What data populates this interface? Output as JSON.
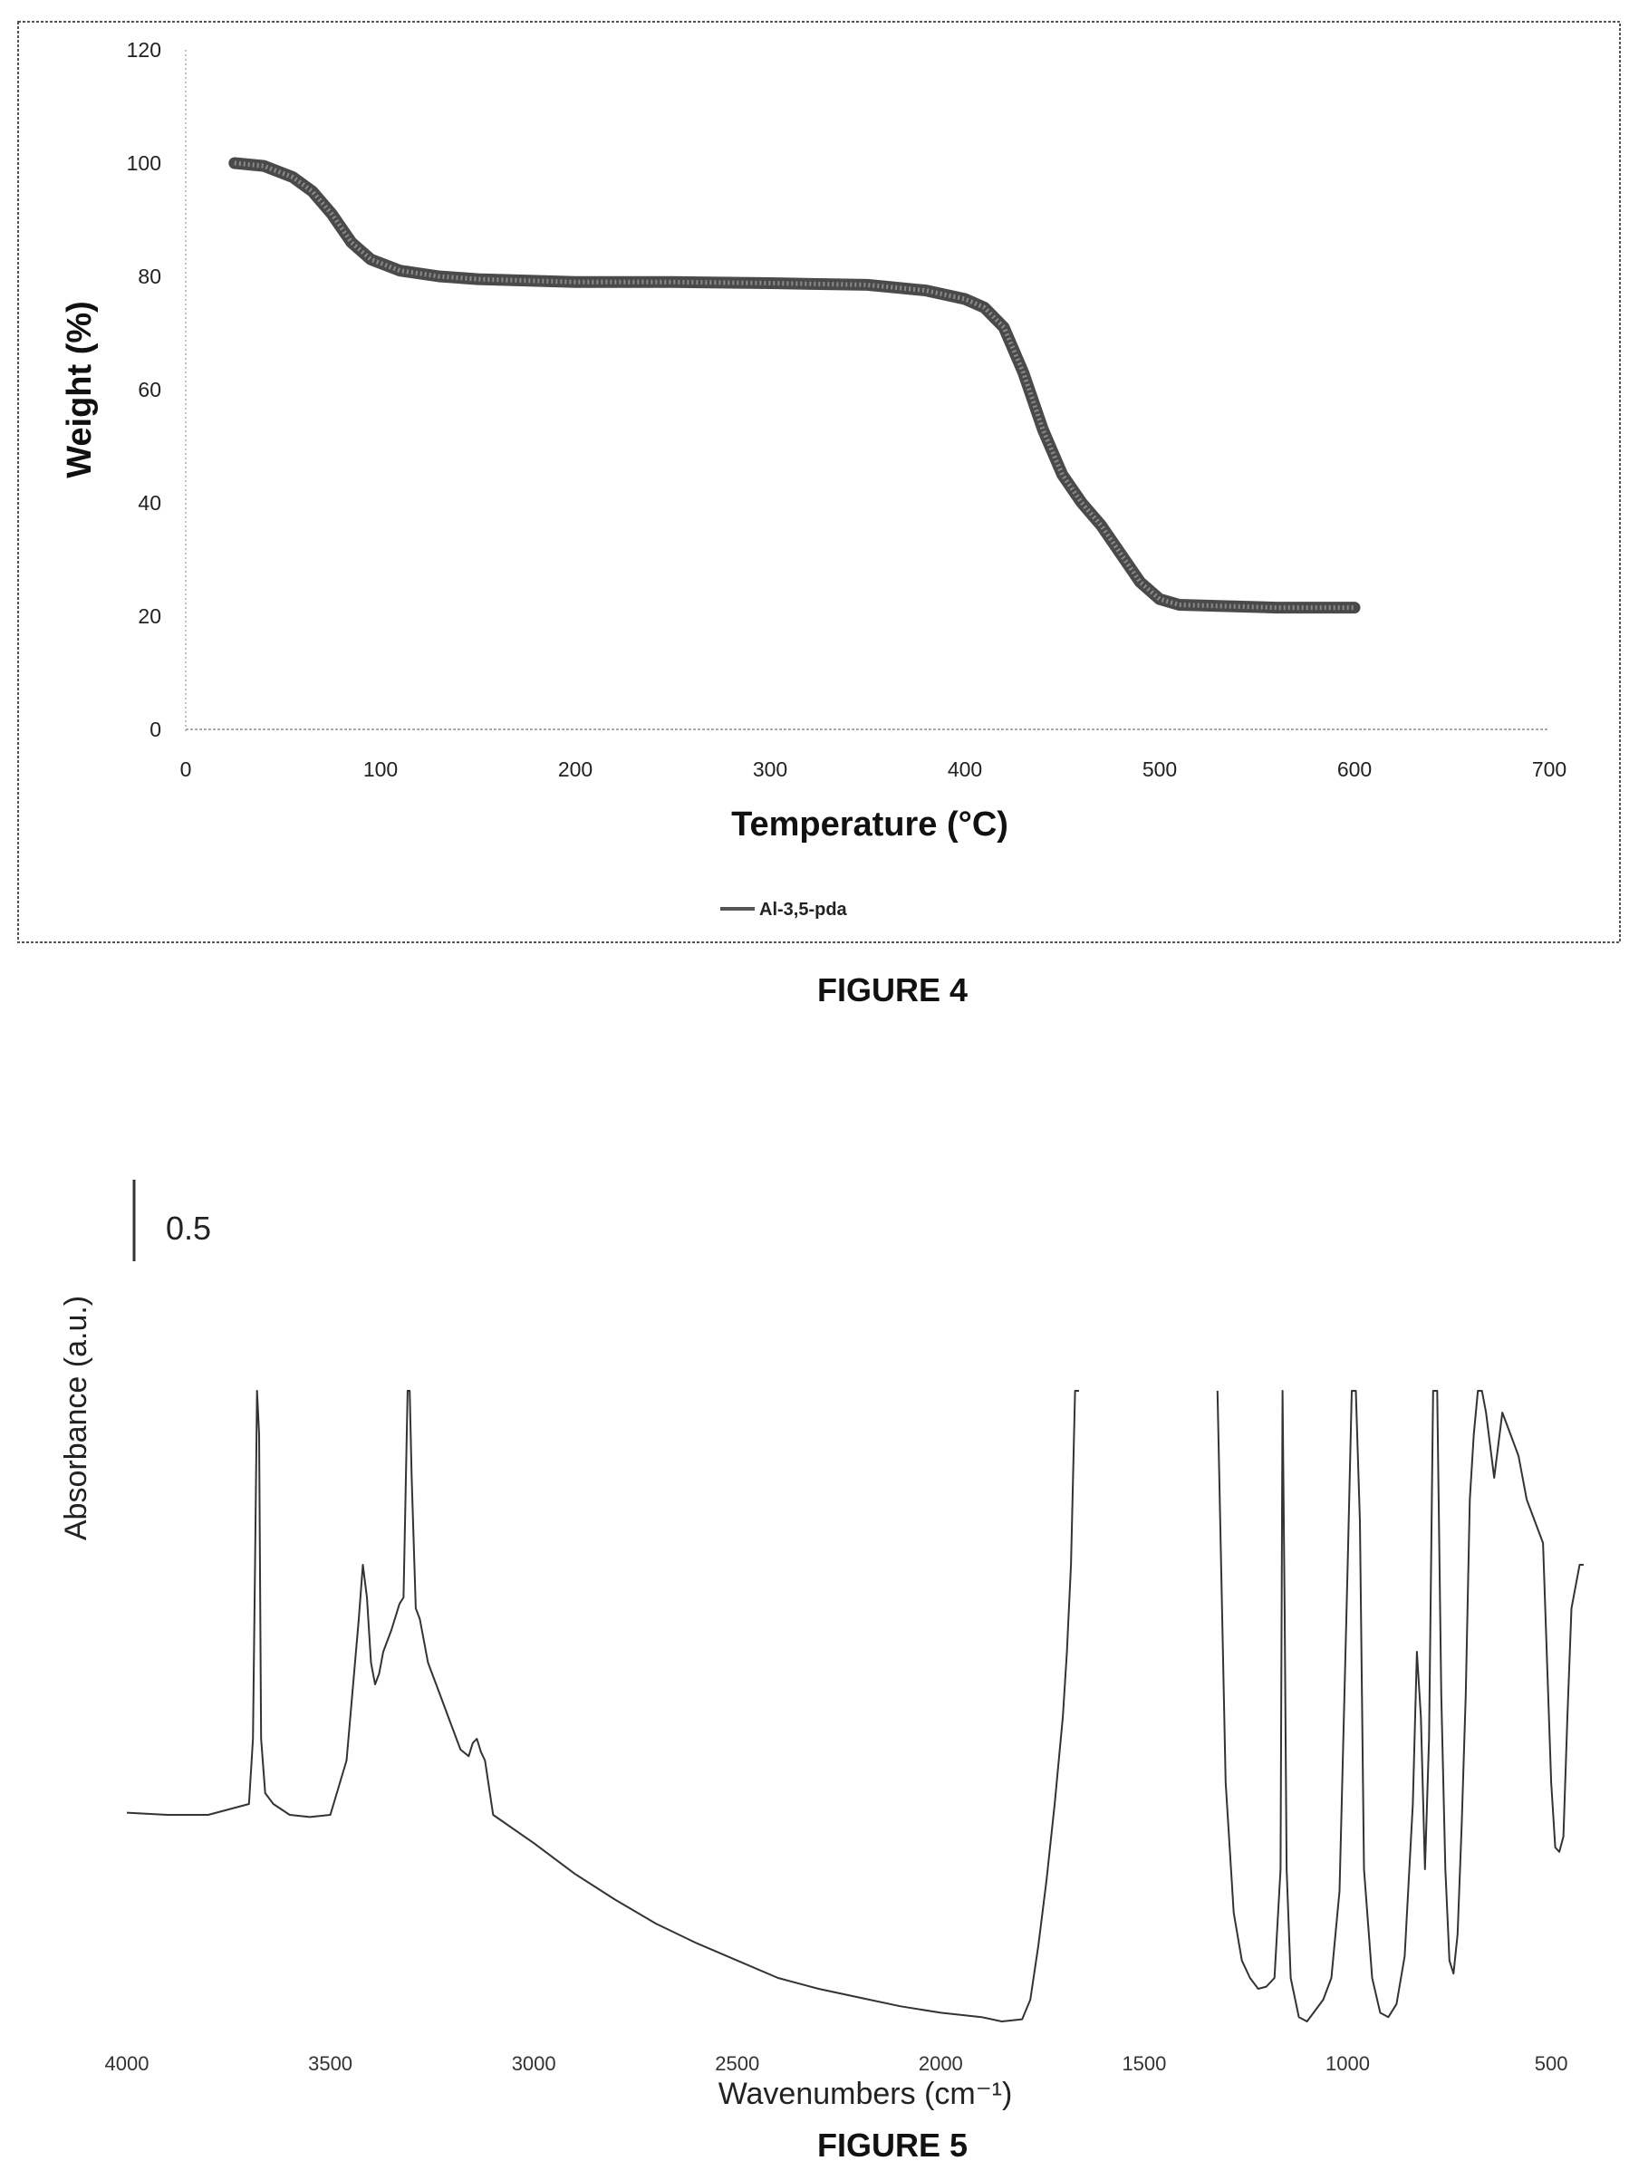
{
  "figure4": {
    "caption": "FIGURE 4",
    "legend_label": "Al-3,5-pda"
  },
  "figure5": {
    "caption": "FIGURE 5",
    "scale_bar_label": "0.5"
  },
  "chart_data": [
    {
      "type": "line",
      "title": "",
      "xlabel": "Temperature (°C)",
      "ylabel": "Weight (%)",
      "xlim": [
        0,
        700
      ],
      "ylim": [
        0,
        120
      ],
      "xticks": [
        "0",
        "100",
        "200",
        "300",
        "400",
        "500",
        "600",
        "700"
      ],
      "yticks": [
        "0",
        "20",
        "40",
        "60",
        "80",
        "100",
        "120"
      ],
      "grid": false,
      "legend": "bottom-center",
      "series": [
        {
          "name": "Al-3,5-pda",
          "x": [
            25,
            40,
            55,
            65,
            75,
            85,
            95,
            110,
            130,
            150,
            200,
            250,
            300,
            350,
            380,
            400,
            410,
            420,
            430,
            440,
            450,
            460,
            470,
            480,
            490,
            500,
            510,
            530,
            560,
            600
          ],
          "y": [
            100,
            99.5,
            97.5,
            95,
            91,
            86,
            83,
            81,
            80,
            79.5,
            79,
            79,
            78.8,
            78.5,
            77.5,
            76,
            74.5,
            71,
            63,
            53,
            45,
            40,
            36,
            31,
            26,
            23,
            22,
            21.8,
            21.5,
            21.5
          ]
        }
      ]
    },
    {
      "type": "line",
      "title": "",
      "xlabel": "Wavenumbers (cm⁻¹)",
      "ylabel": "Absorbance (a.u.)",
      "xlim": [
        4000,
        400
      ],
      "x_reversed": true,
      "xticks": [
        "4000",
        "3500",
        "3000",
        "2500",
        "2000",
        "1500",
        "1000",
        "500"
      ],
      "y_ticks_shown": false,
      "grid": false,
      "series": [
        {
          "x": [
            4000,
            3900,
            3800,
            3700,
            3690,
            3685,
            3680,
            3675,
            3670,
            3660,
            3640,
            3600,
            3550,
            3500,
            3460,
            3430,
            3420,
            3410,
            3400,
            3390,
            3380,
            3370,
            3350,
            3330,
            3320,
            3310,
            3305,
            3300,
            3290,
            3280,
            3260,
            3230,
            3200,
            3180,
            3160,
            3150,
            3140,
            3130,
            3120,
            3100,
            3000,
            2900,
            2800,
            2700,
            2600,
            2500,
            2400,
            2300,
            2200,
            2100,
            2000,
            1900,
            1850,
            1800,
            1780,
            1760,
            1740,
            1720,
            1700,
            1690,
            1680,
            1670,
            1660
          ],
          "y": [
            0.06,
            0.05,
            0.05,
            0.1,
            0.4,
            1.2,
            2.0,
            1.8,
            0.4,
            0.15,
            0.1,
            0.05,
            0.04,
            0.05,
            0.3,
            0.95,
            1.2,
            1.05,
            0.75,
            0.65,
            0.7,
            0.8,
            0.9,
            1.02,
            1.05,
            2.0,
            2.0,
            1.6,
            1.0,
            0.95,
            0.75,
            0.6,
            0.45,
            0.35,
            0.32,
            0.38,
            0.4,
            0.34,
            0.3,
            0.05,
            -0.08,
            -0.22,
            -0.34,
            -0.45,
            -0.54,
            -0.62,
            -0.7,
            -0.75,
            -0.79,
            -0.83,
            -0.86,
            -0.88,
            -0.9,
            -0.89,
            -0.8,
            -0.55,
            -0.25,
            0.1,
            0.5,
            0.8,
            1.2,
            2.0,
            2.0
          ]
        },
        {
          "x": [
            1320,
            1300,
            1280,
            1260,
            1240,
            1220,
            1200,
            1180,
            1165,
            1160,
            1155,
            1150,
            1140,
            1120,
            1100,
            1080,
            1060,
            1040,
            1020,
            1000,
            990,
            985,
            980,
            970,
            960,
            940,
            920,
            900,
            880,
            860,
            840,
            830,
            820,
            810,
            800,
            790,
            780,
            770,
            760,
            750,
            740,
            730,
            720,
            710,
            700,
            690,
            680,
            670,
            660,
            640,
            620,
            600,
            580,
            560,
            540,
            520,
            500,
            490,
            480,
            470,
            460,
            450,
            440,
            430,
            420
          ],
          "y": [
            2.0,
            0.2,
            -0.4,
            -0.62,
            -0.7,
            -0.75,
            -0.74,
            -0.7,
            -0.2,
            2.0,
            1.0,
            -0.2,
            -0.7,
            -0.88,
            -0.9,
            -0.85,
            -0.8,
            -0.7,
            -0.3,
            1.2,
            2.0,
            2.0,
            2.0,
            1.4,
            -0.2,
            -0.7,
            -0.86,
            -0.88,
            -0.82,
            -0.6,
            0.1,
            0.8,
            0.5,
            -0.2,
            0.4,
            2.0,
            2.0,
            0.6,
            -0.2,
            -0.62,
            -0.68,
            -0.5,
            0.0,
            0.6,
            1.5,
            1.8,
            2.0,
            2.0,
            1.9,
            1.6,
            1.9,
            1.8,
            1.7,
            1.5,
            1.4,
            1.3,
            0.2,
            -0.1,
            -0.12,
            -0.05,
            0.5,
            1.0,
            1.1,
            1.2,
            1.2
          ]
        }
      ]
    }
  ]
}
